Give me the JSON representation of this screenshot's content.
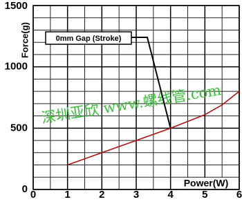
{
  "chart_data": {
    "type": "line",
    "x_label": "Power(W)",
    "y_label": "Force(g)",
    "annotation": {
      "text": "0mm Gap (Stroke)",
      "x": 4,
      "y": 500
    },
    "watermark": "深圳亚欣 www.螺线管.com",
    "x": [
      1,
      2,
      3,
      4,
      4.5,
      5,
      5.5,
      6
    ],
    "series": [
      {
        "color": "#b01010",
        "values": [
          200,
          300,
          400,
          500,
          555,
          610,
          690,
          800
        ]
      }
    ],
    "xlim": [
      0,
      6
    ],
    "ylim": [
      0,
      1500
    ],
    "xticks": [
      0,
      1,
      2,
      3,
      4,
      5,
      6
    ],
    "yticks": [
      0,
      500,
      1000,
      1500
    ],
    "x_grid": [
      0.5,
      1.5,
      2.5,
      3.5,
      4.5,
      5.5
    ],
    "y_grid": [
      100,
      200,
      300,
      400,
      600,
      700,
      800,
      900,
      1100,
      1200,
      1300,
      1400
    ],
    "grid": true
  }
}
